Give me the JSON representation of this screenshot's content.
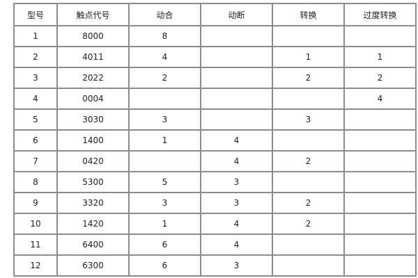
{
  "headers": [
    "型号",
    "触点代号",
    "动合",
    "动断",
    "转换",
    "过度转换"
  ],
  "rows": [
    [
      "1",
      "8000",
      "8",
      "",
      "",
      ""
    ],
    [
      "2",
      "4011",
      "4",
      "",
      "1",
      "1"
    ],
    [
      "3",
      "2022",
      "2",
      "",
      "2",
      "2"
    ],
    [
      "4",
      "0004",
      "",
      "",
      "",
      "4"
    ],
    [
      "5",
      "3030",
      "3",
      "",
      "3",
      ""
    ],
    [
      "6",
      "1400",
      "1",
      "4",
      "",
      ""
    ],
    [
      "7",
      "0420",
      "",
      "4",
      "2",
      ""
    ],
    [
      "8",
      "5300",
      "5",
      "3",
      "",
      ""
    ],
    [
      "9",
      "3320",
      "3",
      "3",
      "2",
      ""
    ],
    [
      "10",
      "1420",
      "1",
      "4",
      "2",
      ""
    ],
    [
      "11",
      "6400",
      "6",
      "4",
      "",
      ""
    ],
    [
      "12",
      "6300",
      "6",
      "3",
      "",
      ""
    ]
  ]
}
